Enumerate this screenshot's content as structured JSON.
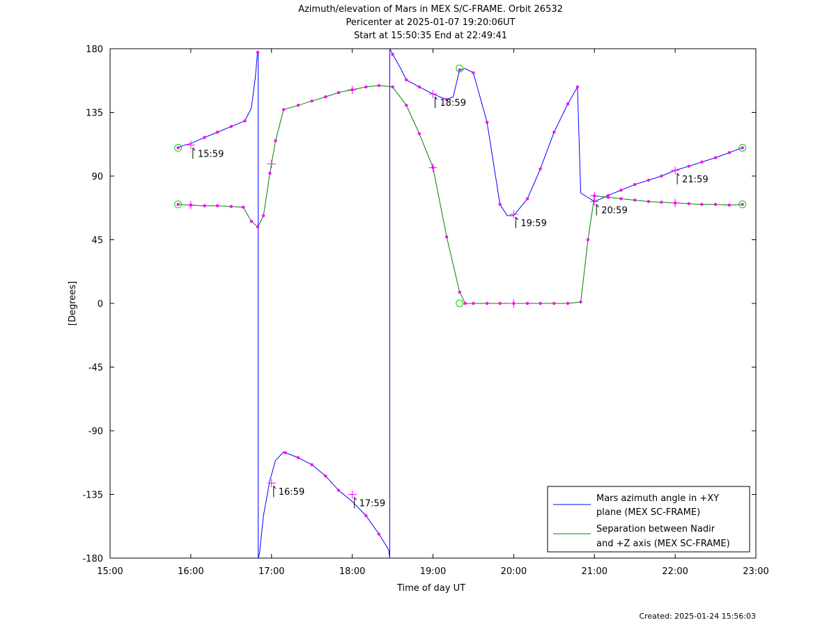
{
  "chart_data": {
    "type": "line",
    "title_lines": [
      "Azimuth/elevation of Mars in MEX S/C-FRAME.  Orbit 26532",
      "Pericenter at 2025-01-07 19:20:06UT",
      "Start at 15:50:35 End at 22:49:41"
    ],
    "xlabel": "Time of day UT",
    "ylabel": "[Degrees]",
    "xlim": [
      15.0,
      23.0
    ],
    "ylim": [
      -180,
      180
    ],
    "x_ticks": [
      15,
      16,
      17,
      18,
      19,
      20,
      21,
      22,
      23
    ],
    "x_tick_labels": [
      "15:00",
      "16:00",
      "17:00",
      "18:00",
      "19:00",
      "20:00",
      "21:00",
      "22:00",
      "23:00"
    ],
    "y_ticks": [
      -180,
      -135,
      -90,
      -45,
      0,
      45,
      90,
      135,
      180
    ],
    "y_tick_labels": [
      "-180",
      "-135",
      "-90",
      "-45",
      "0",
      "45",
      "90",
      "135",
      "180"
    ],
    "grid": false,
    "legend_position": "bottom-right",
    "series": [
      {
        "name": "Mars azimuth angle in +XY plane (MEX SC-FRAME)",
        "legend_lines": [
          "Mars azimuth angle in +XY",
          "plane (MEX SC-FRAME)"
        ],
        "color": "#0000ff",
        "segments": [
          [
            [
              15.843,
              110
            ],
            [
              15.9,
              111.5
            ],
            [
              16.0,
              113
            ],
            [
              16.1,
              115.5
            ],
            [
              16.2,
              118
            ],
            [
              16.33,
              121
            ],
            [
              16.5,
              125
            ],
            [
              16.67,
              129
            ],
            [
              16.75,
              138
            ],
            [
              16.8,
              160
            ],
            [
              16.825,
              177
            ],
            [
              16.835,
              178
            ]
          ],
          [
            [
              16.835,
              -180
            ],
            [
              16.85,
              -177
            ],
            [
              16.9,
              -150
            ],
            [
              16.98,
              -125
            ],
            [
              17.05,
              -111
            ],
            [
              17.15,
              -105
            ],
            [
              17.33,
              -109
            ],
            [
              17.5,
              -114
            ],
            [
              17.67,
              -122
            ],
            [
              17.83,
              -132
            ],
            [
              18.0,
              -140
            ],
            [
              18.17,
              -150
            ],
            [
              18.33,
              -163
            ],
            [
              18.45,
              -174
            ],
            [
              18.465,
              -180
            ]
          ],
          [
            [
              18.465,
              180
            ],
            [
              18.5,
              176
            ],
            [
              18.6,
              166
            ],
            [
              18.67,
              158
            ],
            [
              18.83,
              153
            ],
            [
              19.0,
              148
            ],
            [
              19.17,
              144
            ],
            [
              19.25,
              146
            ],
            [
              19.3,
              158
            ],
            [
              19.33,
              165
            ],
            [
              19.4,
              166
            ],
            [
              19.5,
              163
            ],
            [
              19.67,
              128
            ],
            [
              19.83,
              70
            ],
            [
              19.92,
              62
            ],
            [
              20.0,
              62
            ],
            [
              20.17,
              74
            ],
            [
              20.33,
              95
            ],
            [
              20.5,
              121
            ],
            [
              20.67,
              141
            ],
            [
              20.79,
              153
            ],
            [
              20.83,
              78
            ],
            [
              21.0,
              72
            ],
            [
              21.2,
              77
            ],
            [
              21.5,
              84
            ],
            [
              21.83,
              90
            ],
            [
              22.0,
              94
            ],
            [
              22.17,
              97
            ],
            [
              22.5,
              103
            ],
            [
              22.833,
              110
            ]
          ]
        ],
        "tick_marks": [
          {
            "x": 16.0,
            "y": 112,
            "label": "15:59"
          },
          {
            "x": 19.0,
            "y": 148,
            "label": "18:59"
          },
          {
            "x": 20.0,
            "y": 63,
            "label": "19:59"
          },
          {
            "x": 21.0,
            "y": 72,
            "label": "20:59"
          },
          {
            "x": 22.0,
            "y": 94,
            "label": "21:59"
          }
        ],
        "lower_tick_marks": [
          {
            "x": 17.0,
            "y": -127,
            "label": "16:59"
          },
          {
            "x": 18.0,
            "y": -135,
            "label": "17:59"
          }
        ],
        "dots_x": [
          15.843,
          16.17,
          16.33,
          16.5,
          16.67,
          16.83,
          17.17,
          17.33,
          17.5,
          17.67,
          17.83,
          18.17,
          18.33,
          18.5,
          18.67,
          18.83,
          19.17,
          19.33,
          19.5,
          19.67,
          19.83,
          20.17,
          20.33,
          20.5,
          20.67,
          20.79,
          21.17,
          21.33,
          21.5,
          21.67,
          21.83,
          22.17,
          22.33,
          22.5,
          22.67,
          22.833
        ]
      },
      {
        "name": "Separation between Nadir and +Z axis (MEX SC-FRAME)",
        "legend_lines": [
          "Separation between Nadir",
          "and +Z axis (MEX SC-FRAME)"
        ],
        "color": "#008000",
        "points": [
          [
            15.843,
            70
          ],
          [
            16.0,
            69.5
          ],
          [
            16.17,
            69
          ],
          [
            16.33,
            69
          ],
          [
            16.5,
            68.5
          ],
          [
            16.65,
            68
          ],
          [
            16.75,
            58
          ],
          [
            16.83,
            54
          ],
          [
            16.9,
            62
          ],
          [
            16.98,
            92
          ],
          [
            17.05,
            115
          ],
          [
            17.15,
            137
          ],
          [
            17.33,
            140
          ],
          [
            17.5,
            143
          ],
          [
            17.67,
            146
          ],
          [
            17.83,
            149
          ],
          [
            18.0,
            151
          ],
          [
            18.17,
            153
          ],
          [
            18.33,
            154
          ],
          [
            18.5,
            153
          ],
          [
            18.67,
            140
          ],
          [
            18.83,
            120
          ],
          [
            19.0,
            96
          ],
          [
            19.17,
            47
          ],
          [
            19.33,
            8
          ],
          [
            19.4,
            0
          ],
          [
            19.5,
            0
          ],
          [
            19.67,
            0
          ],
          [
            19.83,
            0
          ],
          [
            20.0,
            0
          ],
          [
            20.17,
            0
          ],
          [
            20.33,
            0
          ],
          [
            20.5,
            0
          ],
          [
            20.67,
            0
          ],
          [
            20.83,
            1
          ],
          [
            20.92,
            45
          ],
          [
            21.0,
            76
          ],
          [
            21.17,
            75
          ],
          [
            21.33,
            74
          ],
          [
            21.5,
            73
          ],
          [
            21.67,
            72
          ],
          [
            21.83,
            71.5
          ],
          [
            22.0,
            71
          ],
          [
            22.17,
            70.5
          ],
          [
            22.33,
            70
          ],
          [
            22.5,
            70
          ],
          [
            22.67,
            69.5
          ],
          [
            22.833,
            70
          ]
        ],
        "tick_marks_x": [
          16.0,
          17.0,
          18.0,
          19.0,
          20.0,
          21.0,
          22.0
        ]
      }
    ],
    "markers": {
      "dot_color": "#ff00ff",
      "tick_color": "#ff00ff",
      "circle_color": "#00cc00",
      "circles": [
        {
          "x": 15.843,
          "y": 110
        },
        {
          "x": 15.843,
          "y": 70
        },
        {
          "x": 19.33,
          "y": 166
        },
        {
          "x": 19.33,
          "y": 0
        },
        {
          "x": 22.833,
          "y": 110
        },
        {
          "x": 22.833,
          "y": 70
        }
      ]
    }
  },
  "created_text": "Created: 2025-01-24 15:56:03"
}
